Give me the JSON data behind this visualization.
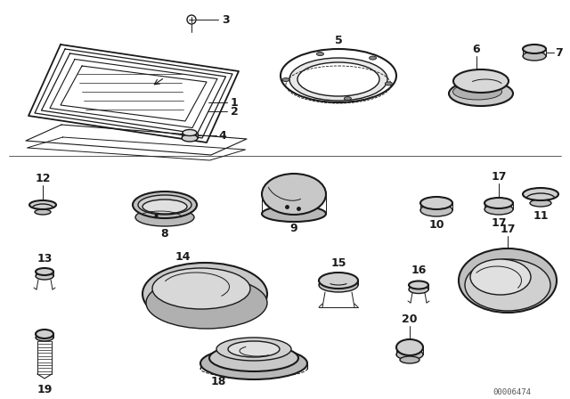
{
  "bg_color": "#ffffff",
  "line_color": "#1a1a1a",
  "watermark": "00006474",
  "fig_w": 6.4,
  "fig_h": 4.48,
  "dpi": 100
}
